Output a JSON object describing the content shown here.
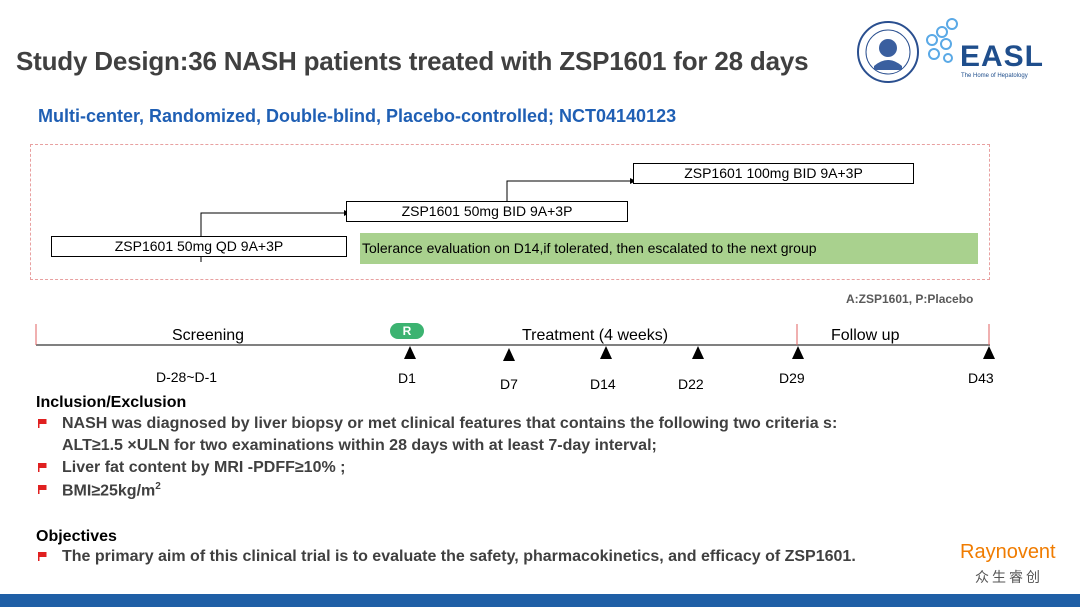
{
  "header": {
    "title": "Study Design:36 NASH patients treated with ZSP1601 for 28 days",
    "subtitle": "Multi-center, Randomized, Double-blind, Placebo-controlled; NCT04140123"
  },
  "logos": {
    "easl": "EASL",
    "easl_tagline": "The Home of Hepatology",
    "raynovent": "Raynovent",
    "raynovent_cn": "众生睿创"
  },
  "design": {
    "groups": [
      "ZSP1601 50mg QD 9A+3P",
      "ZSP1601 50mg BID 9A+3P",
      "ZSP1601 100mg BID 9A+3P"
    ],
    "tolerance_note": "Tolerance evaluation on D14,if tolerated, then escalated to the next group"
  },
  "legend_note": "A:ZSP1601, P:Placebo",
  "timeline": {
    "phases": [
      "Screening",
      "Treatment (4 weeks)",
      "Follow up"
    ],
    "randomization_badge": "R",
    "days": [
      "D-28~D-1",
      "D1",
      "D7",
      "D14",
      "D22",
      "D29",
      "D43"
    ]
  },
  "inclusion": {
    "heading": "Inclusion/Exclusion",
    "items": [
      "NASH was diagnosed by liver biopsy or met clinical features that contains the following two criteria s:",
      "ALT≥1.5 ×ULN for two examinations within 28 days with at least 7-day interval;",
      "Liver fat content by MRI -PDFF≥10% ;",
      "BMI≥25kg/m",
      "2"
    ]
  },
  "objectives": {
    "heading": "Objectives",
    "items": [
      "The primary aim of this clinical trial is to evaluate the safety, pharmacokinetics, and efficacy of ZSP1601."
    ]
  },
  "colors": {
    "title": "#404040",
    "subtitle": "#1f5fb4",
    "tolerance_bg": "#a9d18e",
    "footer_bar": "#1f5fa6",
    "flag": "#e02020",
    "badge": "#3cb371",
    "raynovent": "#f07c00"
  }
}
